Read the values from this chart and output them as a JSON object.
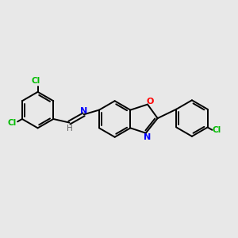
{
  "background_color": "#e8e8e8",
  "bond_color": "#000000",
  "nitrogen_color": "#0000ff",
  "oxygen_color": "#ff0000",
  "chlorine_color": "#00bb00",
  "hydrogen_color": "#606060",
  "line_width": 1.4,
  "figsize": [
    3.0,
    3.0
  ],
  "dpi": 100,
  "xlim": [
    -5.5,
    5.5
  ],
  "ylim": [
    -3.5,
    3.5
  ]
}
